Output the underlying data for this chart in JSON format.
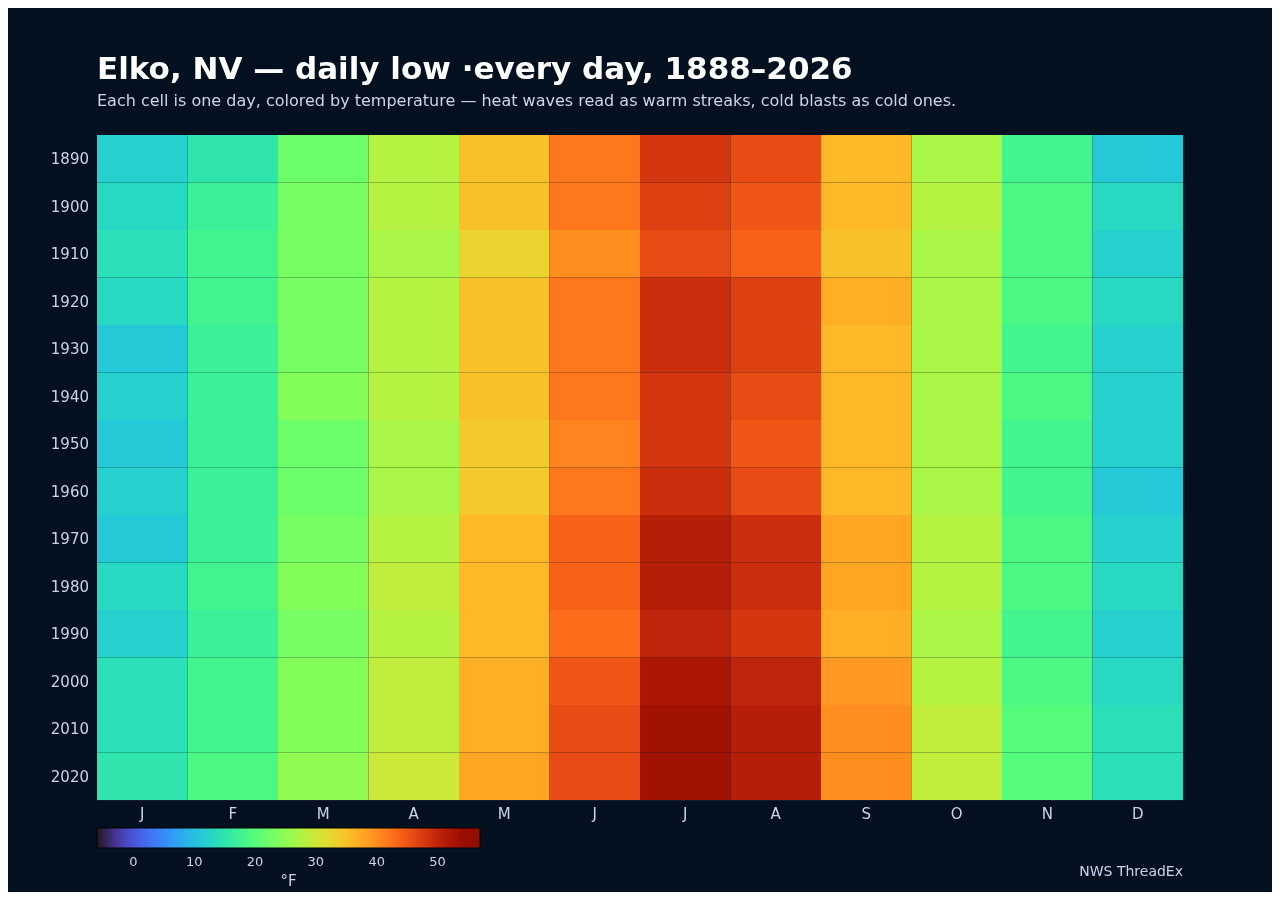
{
  "chart_data": {
    "type": "heatmap",
    "title": "Elko, NV — daily low ·every day, 1888–2026",
    "subtitle": "Each cell is one day, colored by temperature — heat waves read as warm streaks, cold blasts as cold ones.",
    "categories": [
      "J",
      "F",
      "M",
      "A",
      "M",
      "J",
      "J",
      "A",
      "S",
      "O",
      "N",
      "D"
    ],
    "y_categories": [
      "1890",
      "1900",
      "1910",
      "1920",
      "1930",
      "1940",
      "1950",
      "1960",
      "1970",
      "1980",
      "1990",
      "2000",
      "2010",
      "2020"
    ],
    "cells": [
      [
        12,
        15,
        22,
        28,
        35,
        42,
        48,
        46,
        36,
        27,
        18,
        11
      ],
      [
        13,
        17,
        23,
        28,
        35,
        42,
        47,
        45,
        36,
        28,
        19,
        13
      ],
      [
        14,
        18,
        23,
        27,
        33,
        40,
        46,
        44,
        35,
        27,
        19,
        12
      ],
      [
        13,
        18,
        23,
        28,
        35,
        42,
        49,
        47,
        37,
        27,
        19,
        13
      ],
      [
        11,
        17,
        23,
        28,
        35,
        42,
        49,
        47,
        36,
        27,
        18,
        12
      ],
      [
        12,
        17,
        24,
        28,
        35,
        42,
        48,
        46,
        36,
        27,
        19,
        12
      ],
      [
        11,
        17,
        22,
        27,
        34,
        41,
        48,
        45,
        36,
        27,
        18,
        12
      ],
      [
        12,
        17,
        22,
        27,
        34,
        42,
        49,
        46,
        36,
        27,
        18,
        11
      ],
      [
        11,
        17,
        23,
        28,
        36,
        44,
        51,
        49,
        38,
        28,
        19,
        12
      ],
      [
        13,
        18,
        24,
        29,
        36,
        44,
        51,
        49,
        38,
        28,
        19,
        13
      ],
      [
        12,
        17,
        23,
        28,
        36,
        43,
        50,
        48,
        37,
        27,
        18,
        12
      ],
      [
        14,
        18,
        24,
        29,
        37,
        45,
        52,
        50,
        39,
        28,
        19,
        13
      ],
      [
        14,
        18,
        24,
        29,
        37,
        46,
        53,
        51,
        40,
        29,
        20,
        14
      ],
      [
        15,
        19,
        25,
        30,
        38,
        46,
        53,
        51,
        40,
        29,
        20,
        14
      ]
    ],
    "clabel": "°F",
    "clim": [
      -6,
      57
    ],
    "cticks": [
      0,
      10,
      20,
      30,
      40,
      50
    ],
    "annotations": [
      "NWS ThreadEx"
    ]
  }
}
